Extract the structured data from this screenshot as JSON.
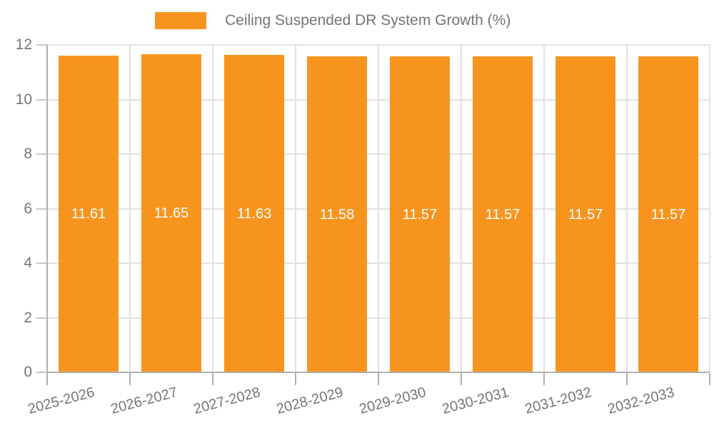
{
  "legend": {
    "label": "Ceiling Suspended DR System Growth (%)"
  },
  "chart_data": {
    "type": "bar",
    "title": "Ceiling Suspended DR System Growth (%)",
    "categories": [
      "2025-2026",
      "2026-2027",
      "2027-2028",
      "2028-2029",
      "2029-2030",
      "2030-2031",
      "2031-2032",
      "2032-2033"
    ],
    "series": [
      {
        "name": "Ceiling Suspended DR System Growth (%)",
        "values": [
          11.61,
          11.65,
          11.63,
          11.58,
          11.57,
          11.57,
          11.57,
          11.57
        ]
      }
    ],
    "value_labels": [
      "11.61",
      "11.65",
      "11.63",
      "11.58",
      "11.57",
      "11.57",
      "11.57",
      "11.57"
    ],
    "xlabel": "",
    "ylabel": "",
    "ylim": [
      0,
      12
    ],
    "yticks": [
      0,
      2,
      4,
      6,
      8,
      10,
      12
    ],
    "grid": true,
    "legend_position": "top",
    "colors": {
      "bar": "#F7941E",
      "value_label": "#FFFFFF",
      "axis_text": "#757575",
      "gridline": "#E2E2E2",
      "axis_line": "#B0B0B0",
      "y_tick": "#C6C6C6",
      "background": "#FFFFFF"
    }
  }
}
